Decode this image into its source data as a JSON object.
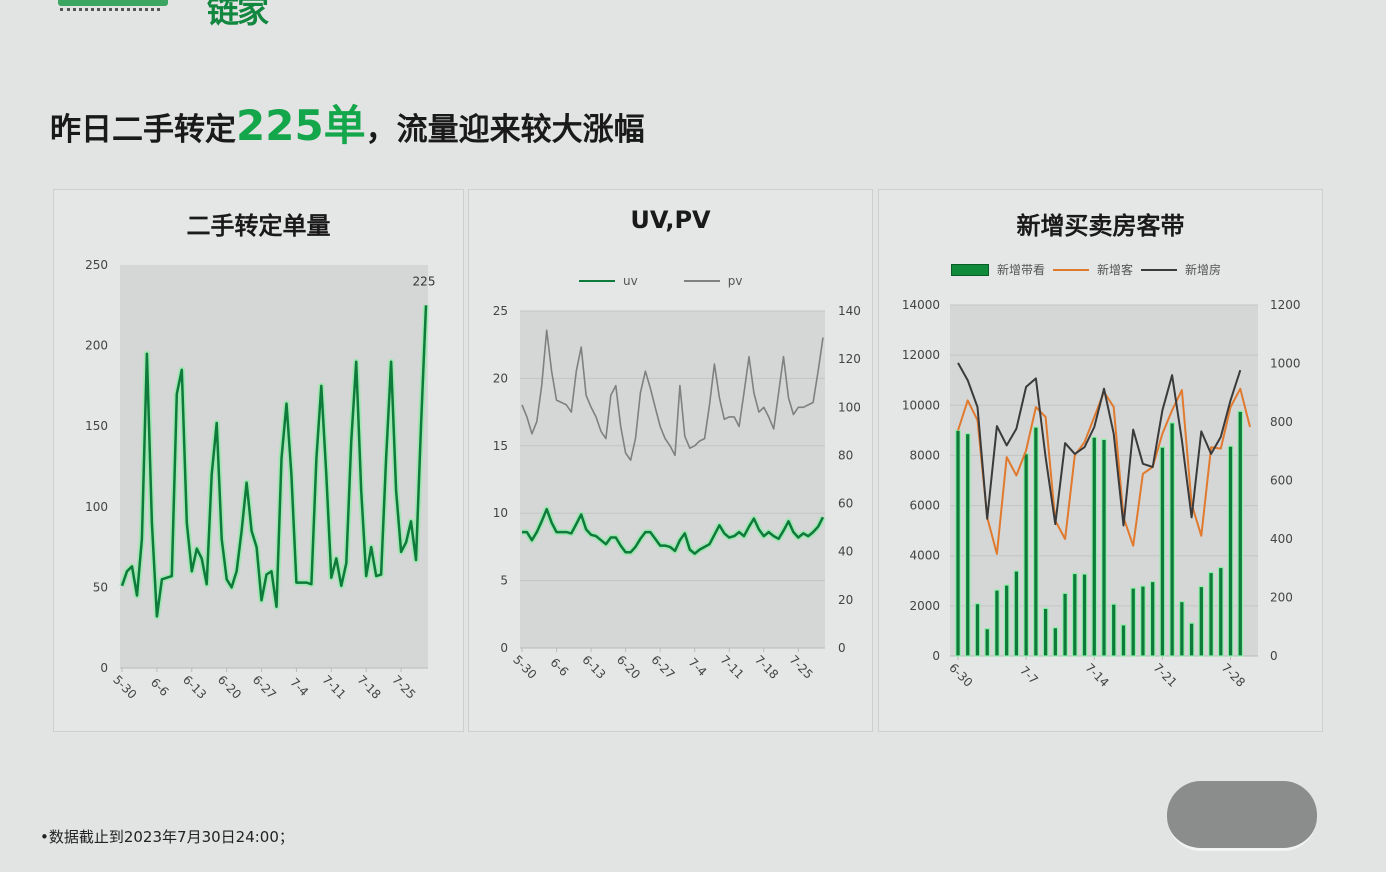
{
  "logo": {
    "text": "链家"
  },
  "headline": {
    "prefix": "昨日二手转定",
    "highlight": "225单",
    "suffix": "，流量迎来较大涨幅"
  },
  "footnote": "•数据截止到2023年7月30日24:00；",
  "colors": {
    "accent": "#14a64a",
    "uv": "#0e7a3c",
    "pv": "#808080",
    "bar": "#0e8a3a",
    "customers": "#e07a2e",
    "houses": "#3a3a3a"
  },
  "chart_data": [
    {
      "type": "line",
      "title": "二手转定单量",
      "xtick_labels": [
        "5-30",
        "6-6",
        "6-13",
        "6-20",
        "6-27",
        "7-4",
        "7-11",
        "7-18",
        "7-25"
      ],
      "x_start": "5-30",
      "x_end": "7-30",
      "ylim": [
        0,
        250
      ],
      "yticks": [
        0,
        50,
        100,
        150,
        200,
        250
      ],
      "data_label": "225",
      "series": [
        {
          "values": [
            51,
            60,
            63,
            45,
            80,
            195,
            90,
            32,
            55,
            56,
            57,
            170,
            185,
            90,
            60,
            74,
            68,
            52,
            120,
            152,
            80,
            55,
            50,
            60,
            85,
            115,
            85,
            75,
            42,
            58,
            60,
            38,
            130,
            164,
            120,
            53,
            53,
            53,
            52,
            130,
            175,
            120,
            56,
            68,
            51,
            65,
            140,
            190,
            110,
            57,
            75,
            57,
            58,
            130,
            190,
            110,
            72,
            78,
            91,
            67,
            150,
            225
          ]
        }
      ]
    },
    {
      "type": "line",
      "title": "UV,PV",
      "xtick_labels": [
        "5-30",
        "6-6",
        "6-13",
        "6-20",
        "6-27",
        "7-4",
        "7-11",
        "7-18",
        "7-25"
      ],
      "x_start": "5-30",
      "x_end": "7-30",
      "ylim": [
        0,
        25
      ],
      "yticks": [
        0,
        5,
        10,
        15,
        20,
        25
      ],
      "y2lim": [
        0,
        140
      ],
      "y2ticks": [
        0,
        20,
        40,
        60,
        80,
        100,
        120,
        140
      ],
      "legend": "top",
      "series": [
        {
          "name": "uv",
          "axis": "left",
          "values": [
            8.6,
            8.6,
            8.0,
            8.6,
            9.4,
            10.3,
            9.3,
            8.6,
            8.6,
            8.6,
            8.5,
            9.2,
            9.9,
            8.8,
            8.4,
            8.3,
            8.0,
            7.7,
            8.2,
            8.2,
            7.6,
            7.1,
            7.1,
            7.5,
            8.1,
            8.6,
            8.6,
            8.1,
            7.6,
            7.6,
            7.5,
            7.2,
            8.0,
            8.5,
            7.3,
            7.0,
            7.3,
            7.5,
            7.7,
            8.4,
            9.1,
            8.5,
            8.2,
            8.3,
            8.6,
            8.3,
            9.0,
            9.6,
            8.8,
            8.3,
            8.6,
            8.3,
            8.1,
            8.7,
            9.4,
            8.6,
            8.2,
            8.5,
            8.3,
            8.6,
            9.0,
            9.7
          ]
        },
        {
          "name": "pv",
          "axis": "right",
          "values": [
            101,
            96,
            89,
            94,
            109,
            132,
            115,
            103,
            102,
            101,
            98,
            115,
            125,
            105,
            100,
            96,
            90,
            87,
            105,
            109,
            92,
            81,
            78,
            87,
            106,
            115,
            108,
            100,
            92,
            87,
            84,
            80,
            109,
            88,
            83,
            84,
            86,
            87,
            101,
            118,
            104,
            95,
            96,
            96,
            92,
            106,
            121,
            106,
            98,
            100,
            96,
            91,
            106,
            121,
            104,
            97,
            100,
            100,
            101,
            102,
            115,
            129
          ]
        }
      ]
    },
    {
      "type": "bar+line",
      "title": "新增买卖房客带",
      "xtick_labels": [
        "6-30",
        "7-7",
        "7-14",
        "7-21",
        "7-28"
      ],
      "x_start": "6-30",
      "x_end": "7-30",
      "ylim": [
        0,
        14000
      ],
      "yticks": [
        0,
        2000,
        4000,
        6000,
        8000,
        10000,
        12000,
        14000
      ],
      "y2lim": [
        0,
        1200
      ],
      "y2ticks": [
        0,
        200,
        400,
        600,
        800,
        1000,
        1200
      ],
      "legend": "top",
      "series": [
        {
          "name": "新增带看",
          "kind": "bar",
          "axis": "left",
          "values": [
            9000,
            8870,
            2090,
            1090,
            2630,
            2830,
            3390,
            8070,
            9130,
            1900,
            1130,
            2500,
            3290,
            3270,
            8730,
            8640,
            2070,
            1240,
            2710,
            2790,
            2970,
            8330,
            9300,
            2170,
            1310,
            2770,
            3330,
            3530,
            8370,
            9760,
            null
          ]
        },
        {
          "name": "新增客",
          "kind": "line",
          "axis": "right",
          "values": [
            771,
            874,
            806,
            474,
            349,
            680,
            617,
            703,
            851,
            817,
            463,
            400,
            686,
            731,
            817,
            903,
            851,
            474,
            377,
            623,
            646,
            760,
            840,
            909,
            520,
            411,
            714,
            709,
            851,
            914,
            783
          ]
        },
        {
          "name": "新增房",
          "kind": "line",
          "axis": "right",
          "values": [
            1002,
            943,
            851,
            469,
            786,
            720,
            777,
            920,
            949,
            680,
            451,
            728,
            691,
            714,
            783,
            914,
            760,
            446,
            774,
            657,
            646,
            840,
            960,
            737,
            474,
            768,
            691,
            749,
            874,
            977,
            null
          ]
        }
      ]
    }
  ]
}
